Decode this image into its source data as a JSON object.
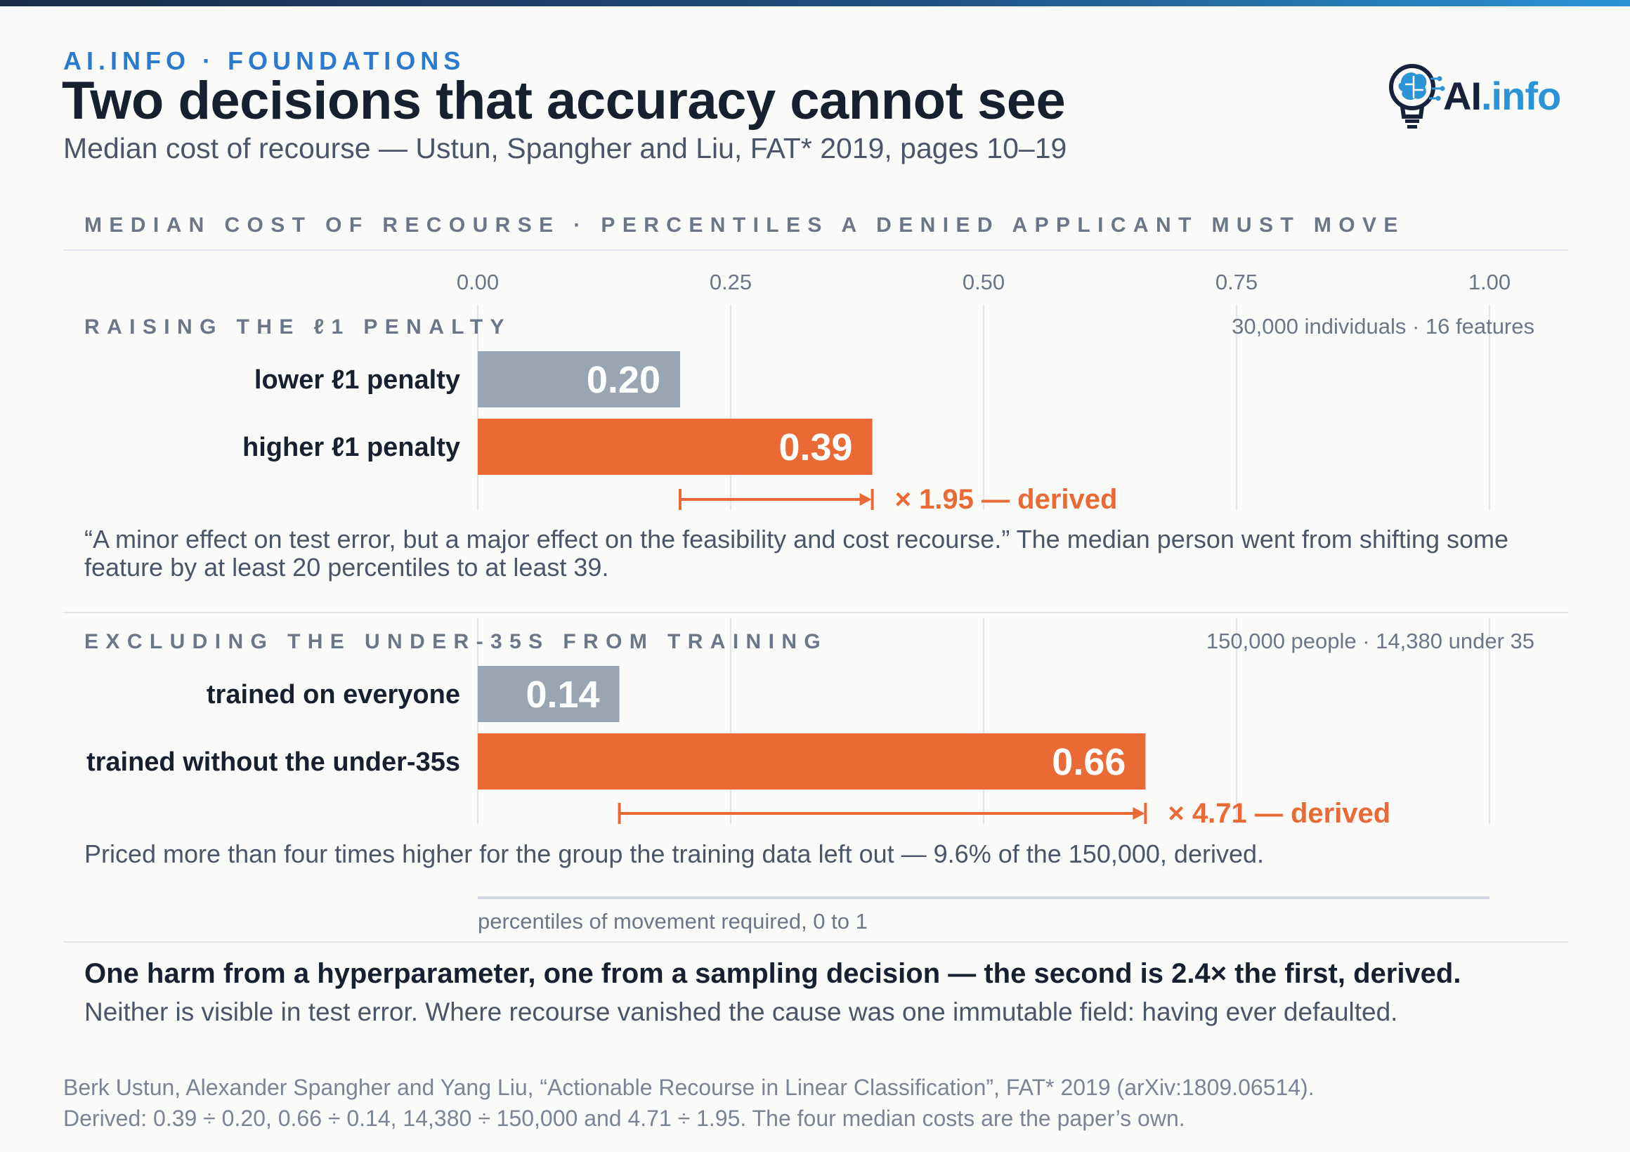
{
  "header": {
    "kicker": "AI.INFO · FOUNDATIONS",
    "title": "Two decisions that accuracy cannot see",
    "subtitle": "Median cost of recourse — Ustun, Spangher and Liu, FAT* 2019, pages 10–19",
    "logo_text_main": "AI",
    "logo_text_dot": ".info"
  },
  "section_head": "MEDIAN COST OF RECOURSE · PERCENTILES A DENIED APPLICANT MUST MOVE",
  "chart_data": {
    "type": "bar",
    "orientation": "horizontal",
    "xlim": [
      0,
      1
    ],
    "xticks": [
      "0.00",
      "0.25",
      "0.50",
      "0.75",
      "1.00"
    ],
    "xlabel": "percentiles of movement required, 0 to 1",
    "grid": true,
    "colors": {
      "baseline": "#99a5b3",
      "highlight": "#e96a35",
      "accent_text": "#e96a35"
    },
    "panels": [
      {
        "heading": "RAISING THE ℓ1 PENALTY",
        "meta": "30,000 individuals · 16 features",
        "bars": [
          {
            "label": "lower ℓ1 penalty",
            "value": 0.2,
            "value_label": "0.20",
            "highlight": false
          },
          {
            "label": "higher ℓ1 penalty",
            "value": 0.39,
            "value_label": "0.39",
            "highlight": true
          }
        ],
        "ratio_label": "× 1.95 — derived",
        "note": "“A minor effect on test error, but a major effect on the feasibility and cost recourse.” The median person went from shifting some feature by at least 20 percentiles to at least 39."
      },
      {
        "heading": "EXCLUDING THE UNDER-35S FROM TRAINING",
        "meta": "150,000 people · 14,380 under 35",
        "bars": [
          {
            "label": "trained on everyone",
            "value": 0.14,
            "value_label": "0.14",
            "highlight": false
          },
          {
            "label": "trained without the under-35s",
            "value": 0.66,
            "value_label": "0.66",
            "highlight": true
          }
        ],
        "ratio_label": "× 4.71 — derived",
        "note": "Priced more than four times higher for the group the training data left out — 9.6% of the 150,000, derived."
      }
    ]
  },
  "conclusion": {
    "headline": "One harm from a hyperparameter, one from a sampling decision — the second is 2.4× the first, derived.",
    "sub": "Neither is visible in test error. Where recourse vanished the cause was one immutable field: having ever defaulted."
  },
  "source": {
    "line1": "Berk Ustun, Alexander Spangher and Yang Liu, “Actionable Recourse in Linear Classification”, FAT* 2019 (arXiv:1809.06514).",
    "line2": "Derived: 0.39 ÷ 0.20, 0.66 ÷ 0.14, 14,380 ÷ 150,000 and 4.71 ÷ 1.95. The four median costs are the paper’s own."
  }
}
